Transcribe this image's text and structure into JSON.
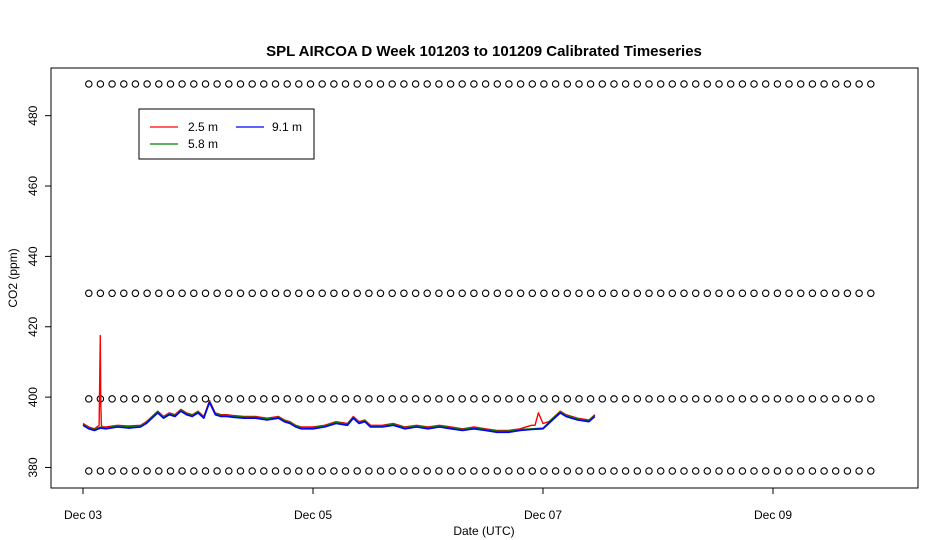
{
  "chart_data": {
    "type": "line",
    "title": "SPL AIRCOA D  Week 101203 to 101209  Calibrated Timeseries",
    "xlabel": "Date (UTC)",
    "ylabel": "CO2 (ppm)",
    "xlim": [
      0,
      7.3
    ],
    "ylim": [
      376,
      494
    ],
    "x_ticks": [
      {
        "x": 0,
        "label": "Dec 03"
      },
      {
        "x": 2,
        "label": "Dec 05"
      },
      {
        "x": 4,
        "label": "Dec 07"
      },
      {
        "x": 6,
        "label": "Dec 09"
      }
    ],
    "y_ticks": [
      380,
      400,
      420,
      440,
      460,
      480
    ],
    "legend_position": "top-left",
    "colors": {
      "s1": "#ff0000",
      "s2": "#008000",
      "s3": "#0000ff",
      "ref": "#000000",
      "axis": "#000000"
    },
    "series": [
      {
        "name": "2.5 m",
        "x": [
          0.0,
          0.05,
          0.1,
          0.14,
          0.15,
          0.155,
          0.16,
          0.17,
          0.2,
          0.3,
          0.4,
          0.5,
          0.55,
          0.6,
          0.65,
          0.7,
          0.75,
          0.8,
          0.85,
          0.9,
          0.95,
          1.0,
          1.05,
          1.1,
          1.15,
          1.2,
          1.25,
          1.3,
          1.4,
          1.5,
          1.6,
          1.7,
          1.75,
          1.8,
          1.85,
          1.9,
          1.95,
          2.0,
          2.1,
          2.2,
          2.3,
          2.35,
          2.4,
          2.45,
          2.5,
          2.6,
          2.7,
          2.8,
          2.9,
          3.0,
          3.1,
          3.2,
          3.3,
          3.4,
          3.5,
          3.6,
          3.7,
          3.8,
          3.9,
          3.93,
          3.96,
          4.0,
          4.05,
          4.1,
          4.15,
          4.2,
          4.3,
          4.4,
          4.45
        ],
        "y": [
          392.5,
          391.5,
          391.0,
          392.0,
          417.5,
          398.0,
          392.0,
          391.5,
          391.5,
          392.0,
          391.8,
          392.0,
          393.0,
          394.5,
          396.0,
          394.5,
          395.5,
          395.0,
          396.5,
          395.5,
          395.0,
          396.0,
          394.5,
          399.0,
          395.5,
          395.0,
          395.0,
          394.8,
          394.5,
          394.5,
          394.0,
          394.5,
          393.5,
          393.0,
          392.0,
          391.5,
          391.5,
          391.5,
          392.0,
          393.0,
          392.5,
          394.5,
          393.0,
          393.5,
          392.0,
          392.0,
          392.5,
          391.5,
          392.0,
          391.5,
          392.0,
          391.5,
          391.0,
          391.5,
          391.0,
          390.5,
          390.5,
          391.0,
          392.0,
          392.0,
          395.5,
          392.5,
          393.0,
          394.5,
          396.0,
          395.0,
          394.0,
          393.5,
          395.0
        ]
      },
      {
        "name": "5.8 m",
        "x": [
          0.0,
          0.05,
          0.1,
          0.15,
          0.2,
          0.3,
          0.4,
          0.5,
          0.55,
          0.6,
          0.65,
          0.7,
          0.75,
          0.8,
          0.85,
          0.9,
          0.95,
          1.0,
          1.05,
          1.1,
          1.15,
          1.2,
          1.25,
          1.3,
          1.4,
          1.5,
          1.6,
          1.7,
          1.75,
          1.8,
          1.85,
          1.9,
          1.95,
          2.0,
          2.1,
          2.2,
          2.3,
          2.35,
          2.4,
          2.45,
          2.5,
          2.6,
          2.7,
          2.8,
          2.9,
          3.0,
          3.1,
          3.2,
          3.3,
          3.4,
          3.5,
          3.6,
          3.7,
          3.8,
          3.9,
          4.0,
          4.05,
          4.1,
          4.15,
          4.2,
          4.3,
          4.4,
          4.45
        ],
        "y": [
          392.2,
          391.2,
          390.8,
          391.5,
          391.2,
          391.8,
          391.5,
          391.8,
          392.8,
          394.3,
          395.8,
          394.3,
          395.3,
          394.8,
          396.3,
          395.3,
          394.8,
          395.8,
          394.3,
          398.8,
          395.3,
          394.8,
          394.8,
          394.6,
          394.3,
          394.3,
          393.8,
          394.3,
          393.3,
          392.8,
          391.8,
          391.3,
          391.3,
          391.3,
          391.8,
          392.8,
          392.3,
          394.3,
          392.8,
          393.3,
          391.8,
          391.8,
          392.3,
          391.3,
          391.8,
          391.3,
          391.8,
          391.3,
          390.8,
          391.3,
          390.8,
          390.3,
          390.3,
          390.8,
          391.0,
          391.2,
          392.8,
          394.3,
          395.8,
          394.8,
          393.8,
          393.3,
          394.8
        ]
      },
      {
        "name": "9.1 m",
        "x": [
          0.0,
          0.05,
          0.1,
          0.15,
          0.2,
          0.3,
          0.4,
          0.5,
          0.55,
          0.6,
          0.65,
          0.7,
          0.75,
          0.8,
          0.85,
          0.9,
          0.95,
          1.0,
          1.05,
          1.1,
          1.15,
          1.2,
          1.25,
          1.3,
          1.4,
          1.5,
          1.6,
          1.7,
          1.75,
          1.8,
          1.85,
          1.9,
          1.95,
          2.0,
          2.1,
          2.2,
          2.3,
          2.35,
          2.4,
          2.45,
          2.5,
          2.6,
          2.7,
          2.8,
          2.9,
          3.0,
          3.1,
          3.2,
          3.3,
          3.4,
          3.5,
          3.6,
          3.7,
          3.8,
          3.9,
          4.0,
          4.05,
          4.1,
          4.15,
          4.2,
          4.3,
          4.4,
          4.45
        ],
        "y": [
          392.0,
          391.0,
          390.5,
          391.2,
          391.0,
          391.5,
          391.2,
          391.5,
          392.5,
          394.0,
          395.5,
          394.0,
          395.0,
          394.5,
          396.0,
          395.0,
          394.5,
          395.5,
          394.0,
          398.5,
          395.0,
          394.5,
          394.5,
          394.3,
          394.0,
          394.0,
          393.5,
          394.0,
          393.0,
          392.5,
          391.5,
          391.0,
          391.0,
          391.0,
          391.5,
          392.5,
          392.0,
          394.0,
          392.5,
          393.0,
          391.5,
          391.5,
          392.0,
          391.0,
          391.5,
          391.0,
          391.5,
          391.0,
          390.5,
          391.0,
          390.5,
          390.0,
          390.0,
          390.5,
          390.8,
          391.0,
          392.5,
          394.0,
          395.5,
          394.5,
          393.5,
          393.0,
          394.5
        ]
      }
    ],
    "reference_levels": [
      489,
      429.5,
      399.5,
      379
    ],
    "reference_x_range": [
      0.05,
      6.85
    ],
    "reference_marker_count": 68
  }
}
